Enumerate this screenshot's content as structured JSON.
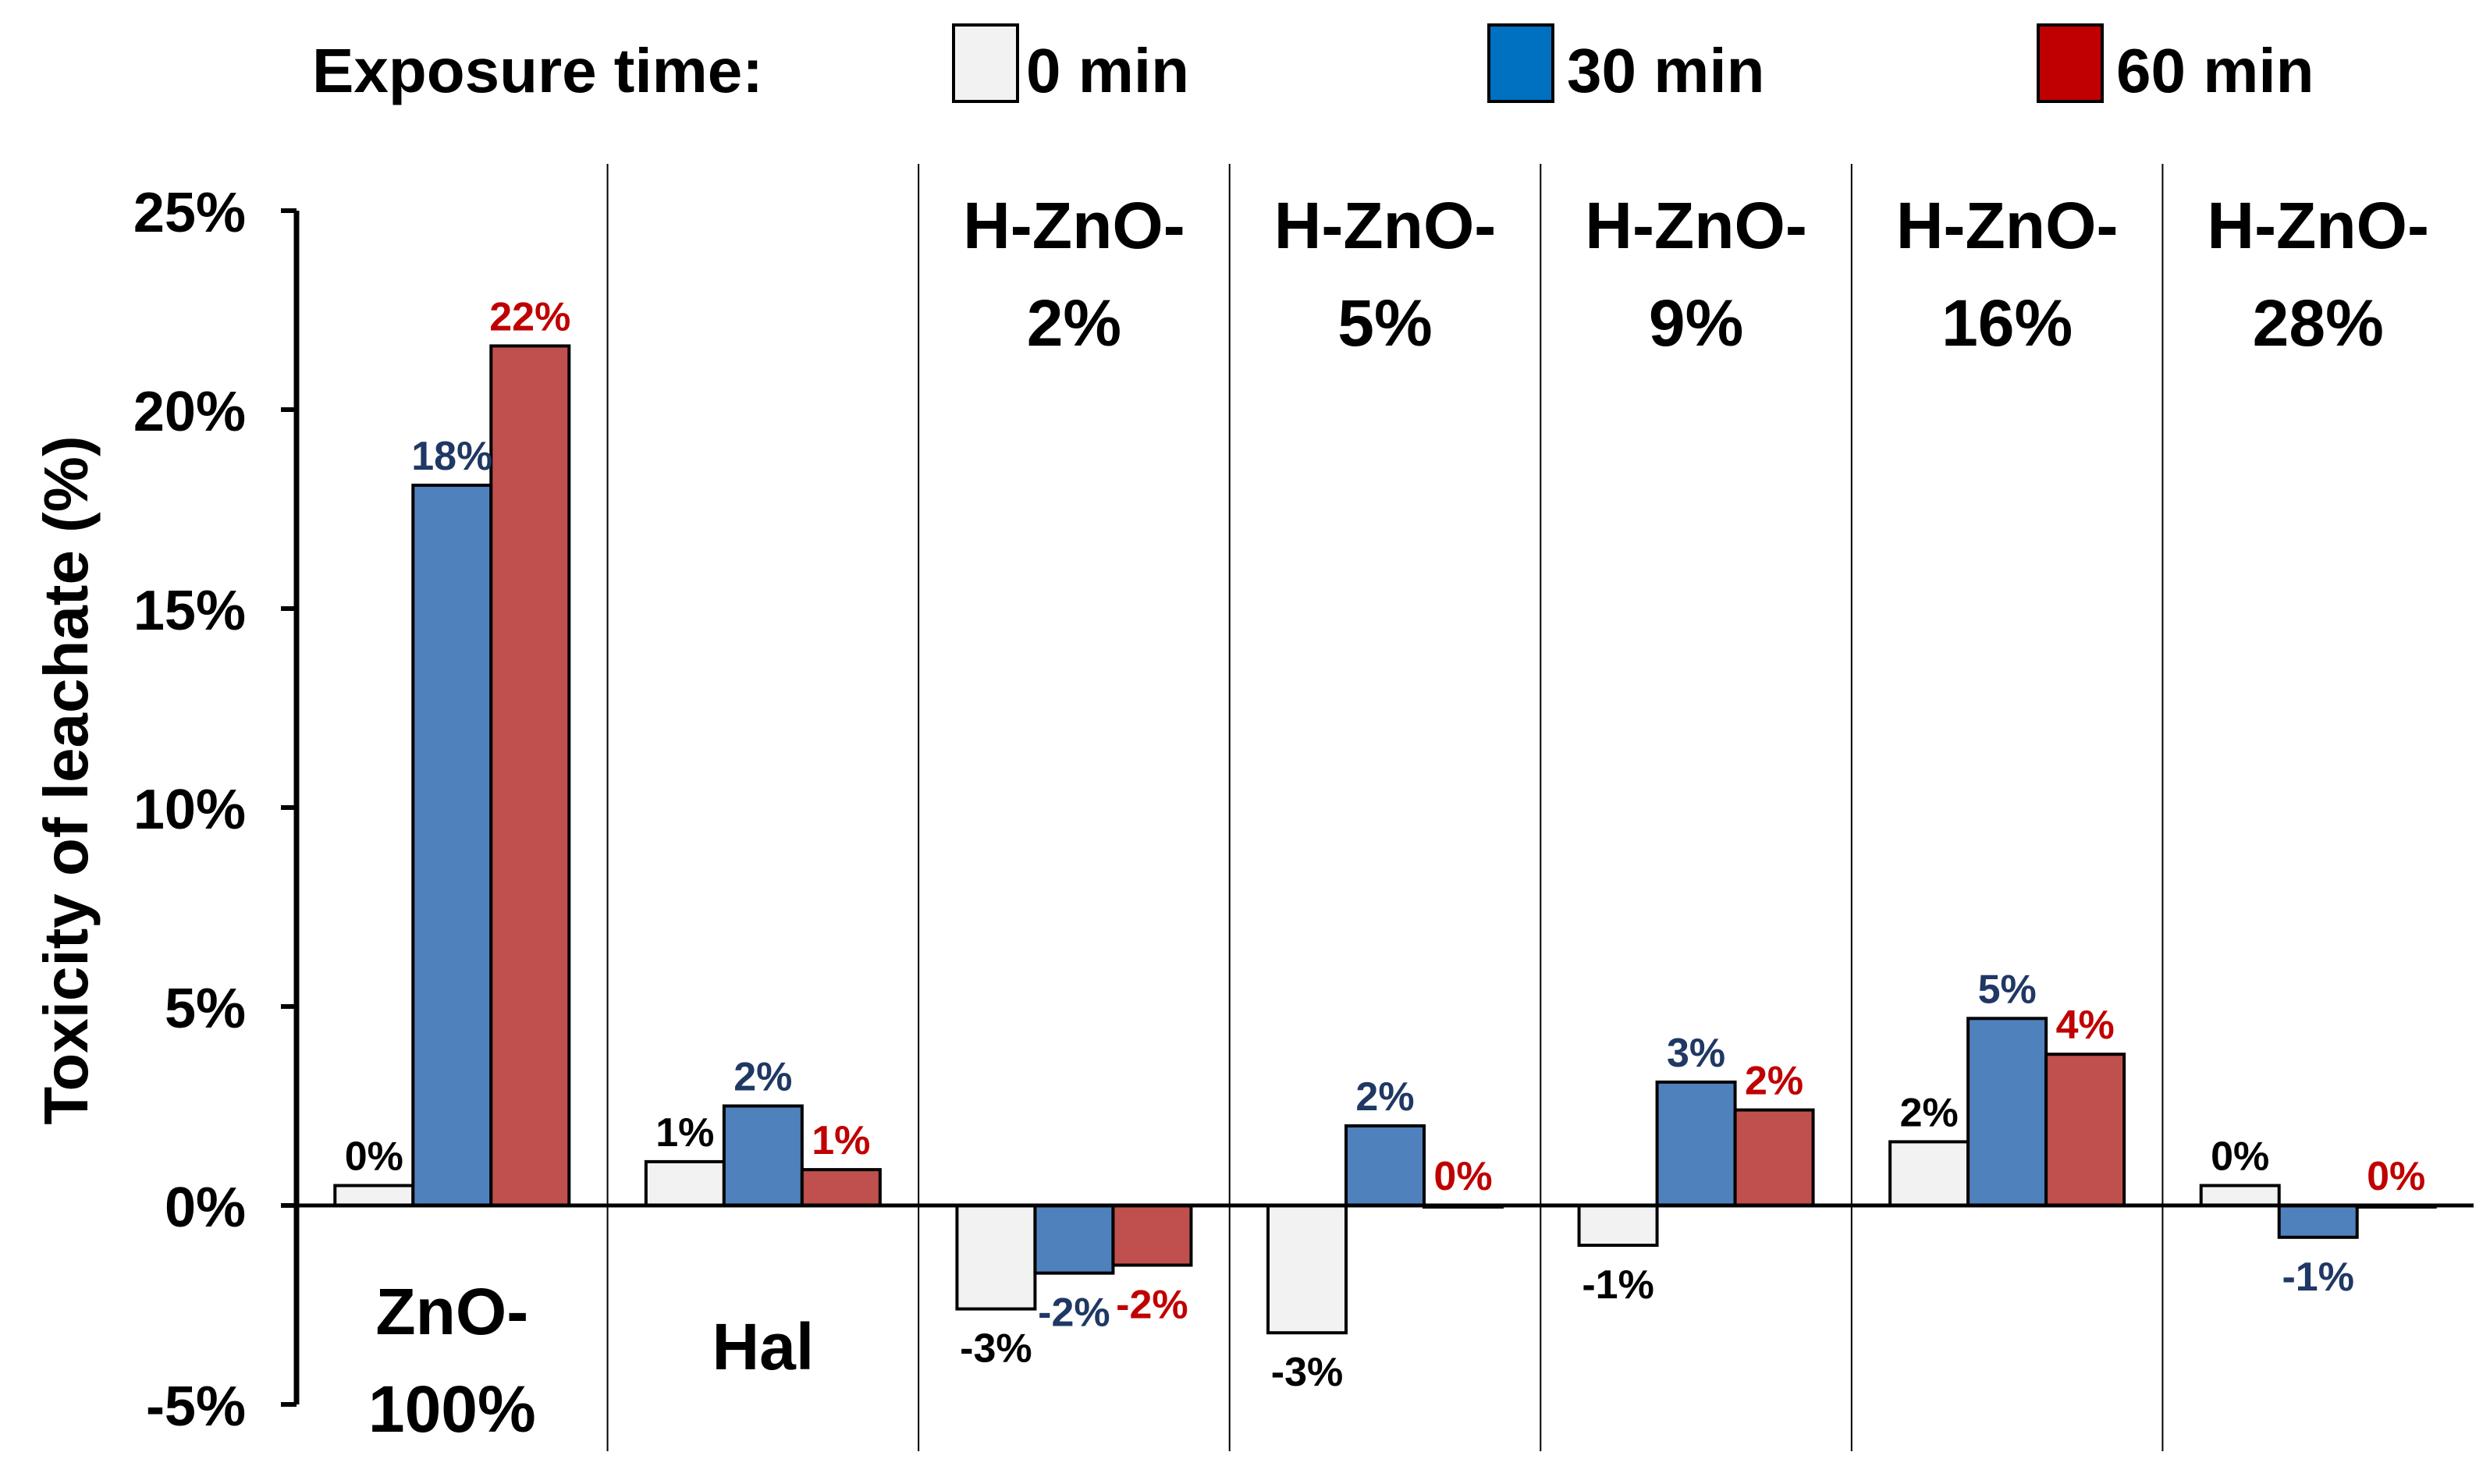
{
  "chart_data": {
    "type": "bar",
    "ylabel": "Toxicity of leachate  (%)",
    "ylim": [
      -5,
      25
    ],
    "yticks": [
      {
        "value": 25,
        "label": "25%"
      },
      {
        "value": 20,
        "label": "20%"
      },
      {
        "value": 15,
        "label": "15%"
      },
      {
        "value": 10,
        "label": "10%"
      },
      {
        "value": 5,
        "label": "5%"
      },
      {
        "value": 0,
        "label": "0%"
      },
      {
        "value": -5,
        "label": "-5%"
      }
    ],
    "legend": {
      "title": "Exposure time:",
      "position": "top"
    },
    "categories": [
      {
        "lines": [
          "ZnO-",
          "100%"
        ],
        "placement": "below"
      },
      {
        "lines": [
          "Hal"
        ],
        "placement": "below"
      },
      {
        "lines": [
          "H-ZnO-",
          "2%"
        ],
        "placement": "top"
      },
      {
        "lines": [
          "H-ZnO-",
          "5%"
        ],
        "placement": "top"
      },
      {
        "lines": [
          "H-ZnO-",
          "9%"
        ],
        "placement": "top"
      },
      {
        "lines": [
          "H-ZnO-",
          "16%"
        ],
        "placement": "top"
      },
      {
        "lines": [
          "H-ZnO-",
          "28%"
        ],
        "placement": "top"
      }
    ],
    "series": [
      {
        "name": "0 min",
        "color": "#f2f2f2",
        "label_color": "#000000",
        "values": [
          0.5,
          1.1,
          -2.6,
          -3.2,
          -1.0,
          1.6,
          0.5
        ],
        "labels": [
          "0%",
          "1%",
          "-3%",
          "-3%",
          "-1%",
          "2%",
          "0%"
        ]
      },
      {
        "name": "30 min",
        "color": "#4f81bd",
        "label_color": "#1f3864",
        "values": [
          18.1,
          2.5,
          -1.7,
          2.0,
          3.1,
          4.7,
          -0.8
        ],
        "labels": [
          "18%",
          "2%",
          "-2%",
          "2%",
          "3%",
          "5%",
          "-1%"
        ]
      },
      {
        "name": "60 min",
        "color": "#c0504d",
        "label_color": "#c00000",
        "values": [
          21.6,
          0.9,
          -1.5,
          0.0,
          2.4,
          3.8,
          0.0
        ],
        "labels": [
          "22%",
          "1%",
          "-2%",
          "0%",
          "2%",
          "4%",
          "0%"
        ]
      }
    ],
    "legend_swatch_colors": [
      "#f2f2f2",
      "#0070c0",
      "#c00000"
    ]
  }
}
